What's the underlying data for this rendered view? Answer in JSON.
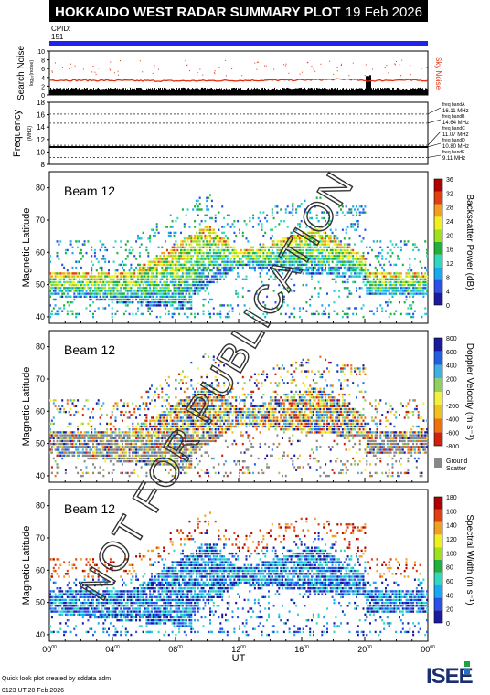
{
  "header": {
    "title": "HOKKAIDO WEST RADAR SUMMARY PLOT",
    "date": "19 Feb 2026",
    "cpid_label": "CPID:",
    "cpid_value": "151"
  },
  "noise_panel": {
    "ylabel": "Search Noise",
    "ylabel_sub": "log₁₀(noise)",
    "side_label": "Sky Noise",
    "ticks": [
      "10",
      "8",
      "6",
      "4",
      "2",
      "0"
    ]
  },
  "freq_panel": {
    "ylabel": "Frequency",
    "unit": "(MHz)",
    "ticks": [
      "18",
      "16",
      "14",
      "12",
      "10",
      "8"
    ],
    "bands": [
      {
        "name": "freq bandA",
        "value": "16.11 MHz"
      },
      {
        "name": "freq bandB",
        "value": "14.64 MHz"
      },
      {
        "name": "freq bandC",
        "value": "11.07 MHz"
      },
      {
        "name": "freq bandD",
        "value": "10.80 MHz"
      },
      {
        "name": "freq bandE",
        "value": "9.11 MHz"
      }
    ]
  },
  "beam_panels": [
    {
      "beam": "Beam 12",
      "ylabel": "Magnetic Latitude",
      "cb_label": "Backscatter Power (dB)",
      "cb_ticks": [
        "36",
        "32",
        "28",
        "24",
        "20",
        "16",
        "12",
        "8",
        "4",
        "0"
      ],
      "lat_ticks": [
        "80",
        "70",
        "60",
        "50",
        "40"
      ]
    },
    {
      "beam": "Beam 12",
      "ylabel": "Magnetic Latitude",
      "cb_label": "Doppler Velocity (m s⁻¹)",
      "cb_ticks": [
        "800",
        "600",
        "400",
        "200",
        "0",
        "-200",
        "-400",
        "-600",
        "-800"
      ],
      "lat_ticks": [
        "80",
        "70",
        "60",
        "50",
        "40"
      ],
      "ground_label": "Ground",
      "scatter_label": "Scatter"
    },
    {
      "beam": "Beam 12",
      "ylabel": "Magnetic Latitude",
      "cb_label": "Spectral Width (m s⁻¹)",
      "cb_ticks": [
        "180",
        "160",
        "140",
        "120",
        "100",
        "80",
        "60",
        "40",
        "20",
        "0"
      ],
      "lat_ticks": [
        "80",
        "70",
        "60",
        "50",
        "40"
      ]
    }
  ],
  "x_axis": {
    "label": "UT",
    "ticks": [
      {
        "h": "00",
        "m": "00"
      },
      {
        "h": "04",
        "m": "00"
      },
      {
        "h": "08",
        "m": "00"
      },
      {
        "h": "12",
        "m": "00"
      },
      {
        "h": "16",
        "m": "00"
      },
      {
        "h": "20",
        "m": "00"
      },
      {
        "h": "00",
        "m": "00"
      }
    ]
  },
  "footer": {
    "credit": "Quick look plot created by sddata adm",
    "timestamp": "0123 UT 20 Feb 2026",
    "logo": "ISEE"
  },
  "watermark": "NOT FOR PUBLICATION",
  "colors": {
    "cpid_bar": "#2222ee",
    "sky_noise": "#e03010",
    "power_scale": [
      "#1a1aa0",
      "#2a50e8",
      "#1aa8f0",
      "#30d8c0",
      "#20b040",
      "#a0e020",
      "#f0f020",
      "#f0a020",
      "#e04010",
      "#b00000"
    ],
    "velocity_scale": [
      "#d02010",
      "#f07010",
      "#f0c020",
      "#f0f040",
      "#90d060",
      "#40b0e0",
      "#2060e0",
      "#1a1aa0"
    ],
    "ground": "#888888"
  },
  "chart_data": [
    {
      "type": "line",
      "name": "search-noise",
      "title": "",
      "ylabel": "Search Noise",
      "ylim": [
        0,
        10
      ],
      "xlim": [
        0,
        24
      ],
      "series": [
        {
          "name": "Sky Noise",
          "x": [
            0,
            4,
            8,
            12,
            16,
            19,
            20,
            22,
            24
          ],
          "values": [
            3.4,
            3.3,
            3.2,
            3.3,
            3.4,
            3.6,
            3.2,
            3.4,
            3.3
          ]
        }
      ]
    },
    {
      "type": "scatter",
      "name": "frequency",
      "ylabel": "Frequency",
      "ylim": [
        8,
        18
      ],
      "xlim": [
        0,
        24
      ],
      "series": [
        {
          "name": "operating frequency",
          "x": [
            0,
            6,
            12,
            18,
            24
          ],
          "values": [
            10.8,
            10.8,
            10.8,
            10.8,
            10.8
          ]
        }
      ]
    },
    {
      "type": "heatmap",
      "name": "backscatter-power",
      "ylabel": "Magnetic Latitude",
      "ylim": [
        38,
        85
      ],
      "xlim": [
        0,
        24
      ],
      "zlim": [
        0,
        36
      ]
    },
    {
      "type": "heatmap",
      "name": "doppler-velocity",
      "ylabel": "Magnetic Latitude",
      "ylim": [
        38,
        85
      ],
      "xlim": [
        0,
        24
      ],
      "zlim": [
        -800,
        800
      ]
    },
    {
      "type": "heatmap",
      "name": "spectral-width",
      "ylabel": "Magnetic Latitude",
      "ylim": [
        38,
        85
      ],
      "xlim": [
        0,
        24
      ],
      "zlim": [
        0,
        180
      ]
    }
  ]
}
